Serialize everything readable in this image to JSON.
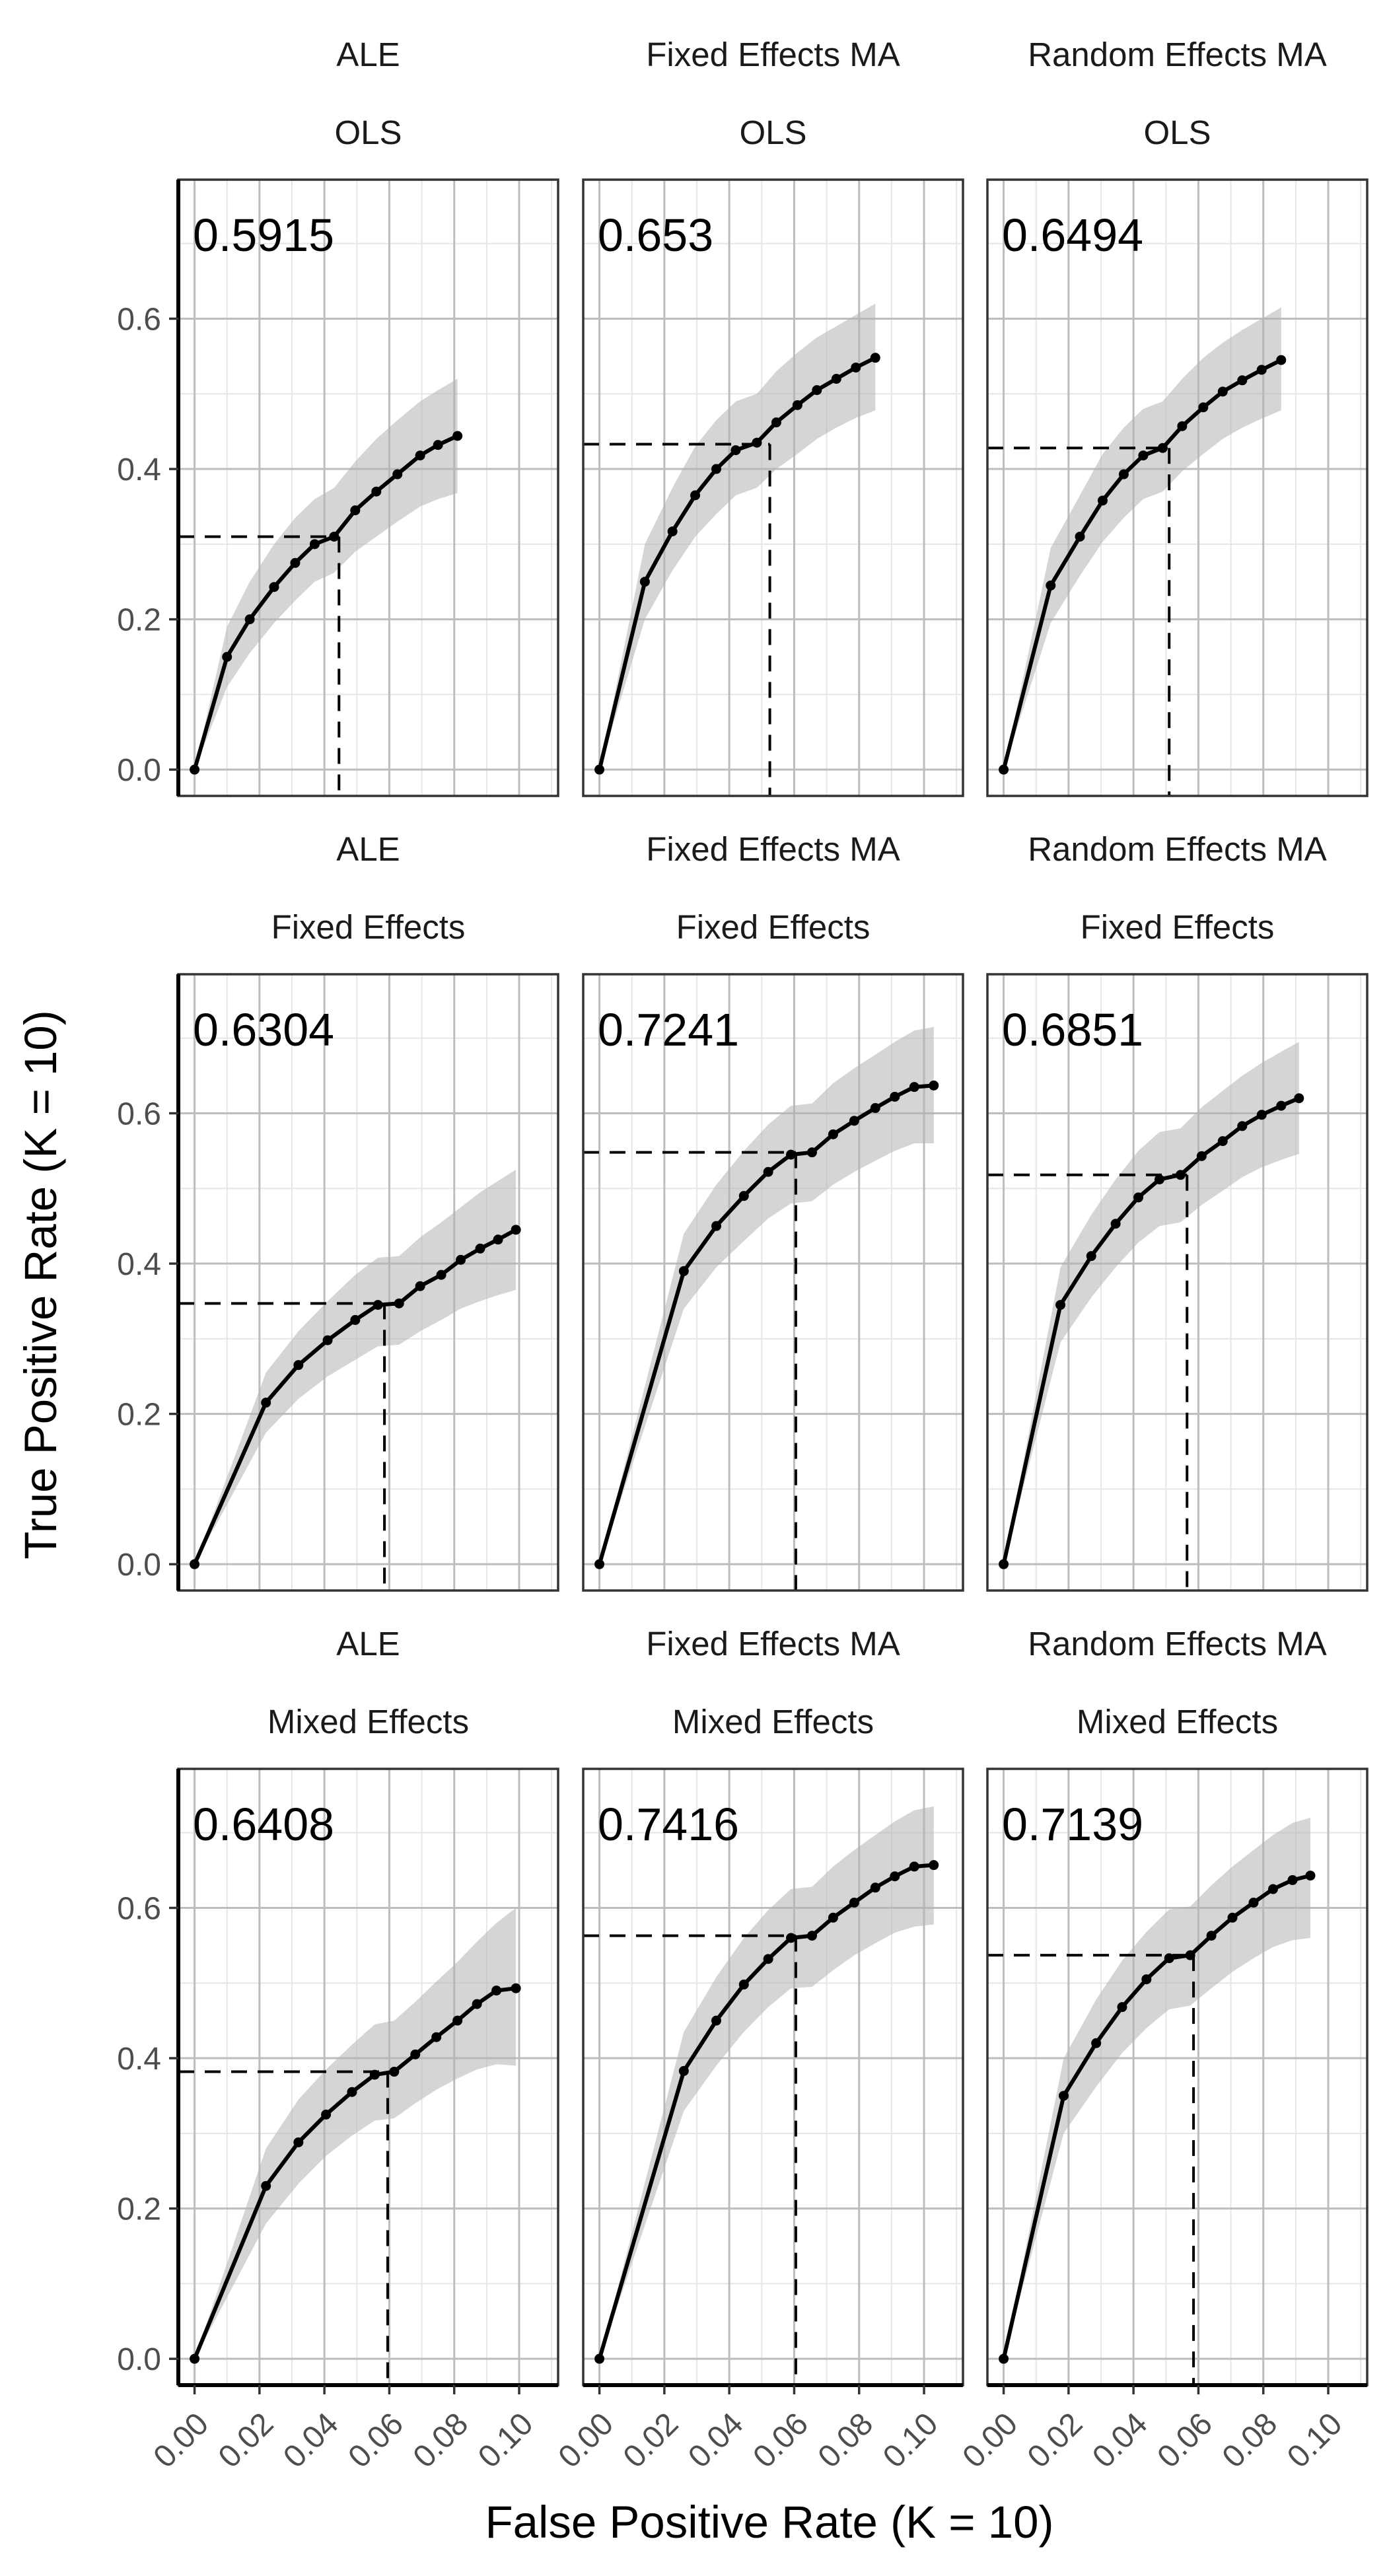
{
  "chart_data": {
    "type": "line",
    "xlabel": "False Positive Rate (K = 10)",
    "ylabel": "True Positive Rate (K = 10)",
    "xlim": [
      -0.005,
      0.112
    ],
    "ylim": [
      -0.035,
      0.785
    ],
    "x_ticks": [
      "0.00",
      "0.02",
      "0.04",
      "0.06",
      "0.08",
      "0.10"
    ],
    "y_ticks": [
      "0.0",
      "0.2",
      "0.4",
      "0.6"
    ],
    "grid": true,
    "facets": [
      {
        "strip_top": "ALE",
        "strip_bottom": "OLS",
        "label": "0.5915",
        "x": [
          0,
          0.01,
          0.017,
          0.0245,
          0.031,
          0.037,
          0.043,
          0.0495,
          0.056,
          0.0625,
          0.0695,
          0.075,
          0.081
        ],
        "y": [
          0,
          0.15,
          0.2,
          0.243,
          0.275,
          0.3,
          0.31,
          0.345,
          0.37,
          0.393,
          0.418,
          0.432,
          0.444
        ],
        "lower": [
          0,
          0.11,
          0.155,
          0.195,
          0.225,
          0.25,
          0.262,
          0.29,
          0.31,
          0.33,
          0.35,
          0.36,
          0.368
        ],
        "upper": [
          0,
          0.19,
          0.25,
          0.3,
          0.335,
          0.36,
          0.375,
          0.41,
          0.44,
          0.465,
          0.49,
          0.505,
          0.52
        ],
        "ref_x": 0.0445,
        "ref_y": 0.31
      },
      {
        "strip_top": "Fixed Effects MA",
        "strip_bottom": "OLS",
        "label": "0.653",
        "x": [
          0,
          0.014,
          0.0225,
          0.0295,
          0.036,
          0.042,
          0.0485,
          0.0545,
          0.061,
          0.067,
          0.073,
          0.079,
          0.085
        ],
        "y": [
          0,
          0.25,
          0.317,
          0.365,
          0.4,
          0.425,
          0.435,
          0.462,
          0.485,
          0.505,
          0.52,
          0.535,
          0.548
        ],
        "lower": [
          0,
          0.2,
          0.265,
          0.31,
          0.34,
          0.365,
          0.375,
          0.4,
          0.42,
          0.44,
          0.455,
          0.468,
          0.478
        ],
        "upper": [
          0,
          0.3,
          0.375,
          0.43,
          0.465,
          0.49,
          0.5,
          0.53,
          0.555,
          0.575,
          0.59,
          0.605,
          0.62
        ],
        "ref_x": 0.0525,
        "ref_y": 0.433
      },
      {
        "strip_top": "Random Effects MA",
        "strip_bottom": "OLS",
        "label": "0.6494",
        "x": [
          0,
          0.0145,
          0.0235,
          0.0305,
          0.037,
          0.043,
          0.049,
          0.055,
          0.0615,
          0.0675,
          0.0735,
          0.0795,
          0.0855
        ],
        "y": [
          0,
          0.245,
          0.31,
          0.358,
          0.393,
          0.418,
          0.428,
          0.457,
          0.482,
          0.503,
          0.518,
          0.532,
          0.545
        ],
        "lower": [
          0,
          0.195,
          0.258,
          0.303,
          0.335,
          0.36,
          0.37,
          0.397,
          0.42,
          0.44,
          0.455,
          0.467,
          0.478
        ],
        "upper": [
          0,
          0.295,
          0.365,
          0.42,
          0.455,
          0.48,
          0.49,
          0.52,
          0.548,
          0.568,
          0.585,
          0.6,
          0.615
        ],
        "ref_x": 0.051,
        "ref_y": 0.428
      },
      {
        "strip_top": "ALE",
        "strip_bottom": "Fixed Effects",
        "label": "0.6304",
        "x": [
          0,
          0.022,
          0.032,
          0.041,
          0.0495,
          0.0565,
          0.063,
          0.0695,
          0.076,
          0.082,
          0.088,
          0.0935,
          0.099
        ],
        "y": [
          0,
          0.215,
          0.265,
          0.298,
          0.325,
          0.345,
          0.347,
          0.37,
          0.385,
          0.405,
          0.42,
          0.432,
          0.445
        ],
        "lower": [
          0,
          0.175,
          0.22,
          0.25,
          0.272,
          0.29,
          0.292,
          0.31,
          0.325,
          0.34,
          0.35,
          0.358,
          0.365
        ],
        "upper": [
          0,
          0.255,
          0.31,
          0.35,
          0.385,
          0.408,
          0.41,
          0.435,
          0.455,
          0.475,
          0.495,
          0.51,
          0.525
        ],
        "ref_x": 0.0585,
        "ref_y": 0.347
      },
      {
        "strip_top": "Fixed Effects MA",
        "strip_bottom": "Fixed Effects",
        "label": "0.7241",
        "x": [
          0,
          0.026,
          0.036,
          0.0445,
          0.052,
          0.059,
          0.0655,
          0.072,
          0.0785,
          0.085,
          0.091,
          0.097,
          0.103
        ],
        "y": [
          0,
          0.39,
          0.45,
          0.49,
          0.522,
          0.545,
          0.548,
          0.572,
          0.59,
          0.607,
          0.622,
          0.635,
          0.637
        ],
        "lower": [
          0,
          0.34,
          0.395,
          0.43,
          0.46,
          0.48,
          0.483,
          0.505,
          0.522,
          0.537,
          0.55,
          0.56,
          0.56
        ],
        "upper": [
          0,
          0.44,
          0.505,
          0.55,
          0.585,
          0.61,
          0.613,
          0.64,
          0.66,
          0.678,
          0.695,
          0.71,
          0.715
        ],
        "ref_x": 0.0605,
        "ref_y": 0.548
      },
      {
        "strip_top": "Random Effects MA",
        "strip_bottom": "Fixed Effects",
        "label": "0.6851",
        "x": [
          0,
          0.0175,
          0.027,
          0.0345,
          0.0415,
          0.048,
          0.0545,
          0.061,
          0.0675,
          0.0735,
          0.0795,
          0.0855,
          0.091
        ],
        "y": [
          0,
          0.345,
          0.41,
          0.453,
          0.488,
          0.512,
          0.518,
          0.543,
          0.563,
          0.583,
          0.598,
          0.61,
          0.62
        ],
        "lower": [
          0,
          0.295,
          0.355,
          0.395,
          0.428,
          0.45,
          0.455,
          0.478,
          0.497,
          0.515,
          0.528,
          0.538,
          0.546
        ],
        "upper": [
          0,
          0.395,
          0.465,
          0.512,
          0.55,
          0.575,
          0.58,
          0.608,
          0.63,
          0.65,
          0.667,
          0.682,
          0.695
        ],
        "ref_x": 0.0565,
        "ref_y": 0.518
      },
      {
        "strip_top": "ALE",
        "strip_bottom": "Mixed Effects",
        "label": "0.6408",
        "x": [
          0,
          0.022,
          0.032,
          0.0405,
          0.0485,
          0.0555,
          0.0615,
          0.068,
          0.0745,
          0.081,
          0.087,
          0.093,
          0.099
        ],
        "y": [
          0,
          0.23,
          0.288,
          0.325,
          0.355,
          0.378,
          0.382,
          0.405,
          0.428,
          0.45,
          0.472,
          0.49,
          0.493
        ],
        "lower": [
          0,
          0.18,
          0.233,
          0.27,
          0.297,
          0.317,
          0.32,
          0.34,
          0.358,
          0.373,
          0.385,
          0.392,
          0.39
        ],
        "upper": [
          0,
          0.28,
          0.345,
          0.385,
          0.418,
          0.445,
          0.45,
          0.475,
          0.502,
          0.528,
          0.555,
          0.58,
          0.6
        ],
        "ref_x": 0.0595,
        "ref_y": 0.382
      },
      {
        "strip_top": "Fixed Effects MA",
        "strip_bottom": "Mixed Effects",
        "label": "0.7416",
        "x": [
          0,
          0.026,
          0.036,
          0.0445,
          0.052,
          0.059,
          0.0655,
          0.072,
          0.0785,
          0.085,
          0.091,
          0.097,
          0.103
        ],
        "y": [
          0,
          0.383,
          0.45,
          0.498,
          0.532,
          0.56,
          0.563,
          0.587,
          0.607,
          0.627,
          0.642,
          0.655,
          0.657
        ],
        "lower": [
          0,
          0.33,
          0.39,
          0.435,
          0.468,
          0.493,
          0.495,
          0.517,
          0.537,
          0.553,
          0.567,
          0.575,
          0.578
        ],
        "upper": [
          0,
          0.435,
          0.508,
          0.56,
          0.597,
          0.625,
          0.628,
          0.655,
          0.677,
          0.697,
          0.715,
          0.73,
          0.735
        ],
        "ref_x": 0.0605,
        "ref_y": 0.563
      },
      {
        "strip_top": "Random Effects MA",
        "strip_bottom": "Mixed Effects",
        "label": "0.7139",
        "x": [
          0,
          0.0185,
          0.0285,
          0.0365,
          0.044,
          0.051,
          0.0575,
          0.064,
          0.0705,
          0.077,
          0.083,
          0.089,
          0.0945
        ],
        "y": [
          0,
          0.35,
          0.42,
          0.468,
          0.505,
          0.533,
          0.537,
          0.563,
          0.587,
          0.607,
          0.625,
          0.637,
          0.643
        ],
        "lower": [
          0,
          0.3,
          0.362,
          0.407,
          0.44,
          0.465,
          0.47,
          0.493,
          0.515,
          0.533,
          0.548,
          0.557,
          0.56
        ],
        "upper": [
          0,
          0.4,
          0.478,
          0.53,
          0.568,
          0.598,
          0.602,
          0.63,
          0.655,
          0.677,
          0.697,
          0.713,
          0.72
        ],
        "ref_x": 0.0585,
        "ref_y": 0.537
      }
    ]
  }
}
